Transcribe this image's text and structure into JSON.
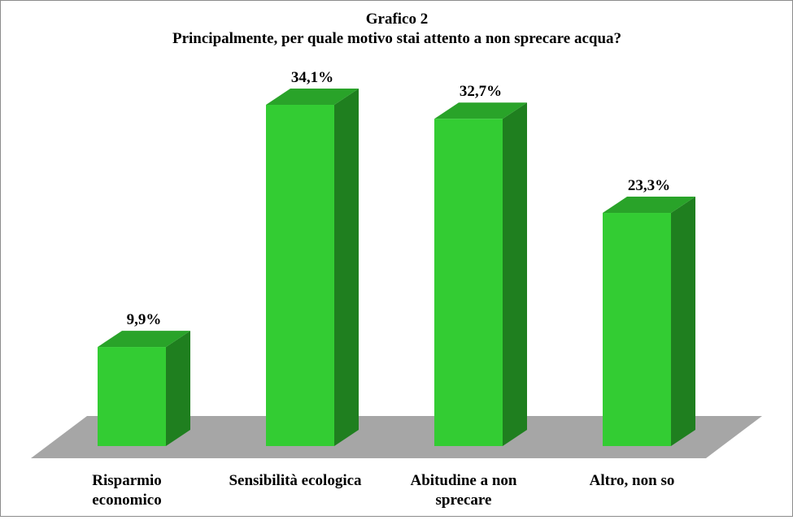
{
  "chart_data": {
    "type": "bar",
    "style": "3d-column",
    "title": "Grafico 2",
    "subtitle": "Principalmente, per quale motivo stai attento a non sprecare acqua?",
    "categories": [
      [
        "Risparmio",
        "economico"
      ],
      [
        "Sensibilità ecologica"
      ],
      [
        "Abitudine a non",
        "sprecare"
      ],
      [
        "Altro, non so"
      ]
    ],
    "values": [
      9.9,
      34.1,
      32.7,
      23.3
    ],
    "data_labels": [
      "9,9%",
      "34,1%",
      "32,7%",
      "23,3%"
    ],
    "unit": "%",
    "ylim": [
      0,
      34.1
    ],
    "grid": false,
    "legend": "none",
    "colors": {
      "bar_front": "#33cc33",
      "bar_side": "#1f7f1f",
      "bar_top": "#29a329",
      "floor": "#a6a6a6",
      "text": "#000000"
    }
  }
}
